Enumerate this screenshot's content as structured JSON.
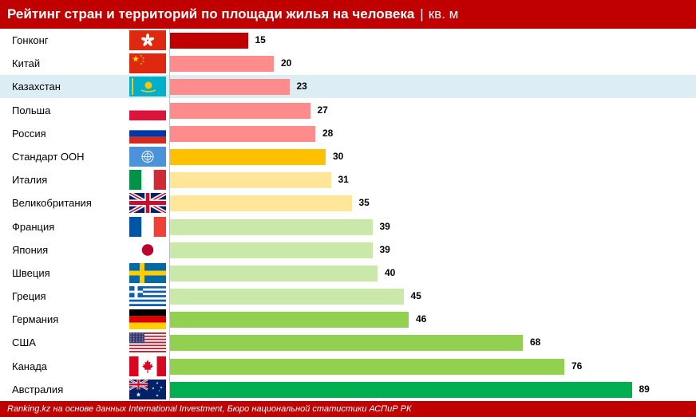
{
  "header": {
    "title": "Рейтинг стран и территорий по площади жилья на человека",
    "separator": "|",
    "unit": "кв. м"
  },
  "footer": {
    "source": "Ranking.kz на основе данных International Investment, Бюро национальной статистики АСПиР РК"
  },
  "colors": {
    "header_bg": "#c00000",
    "highlight_row": "#dcedf3",
    "tier_dark_red": "#c00000",
    "tier_pink": "#ff8c8c",
    "tier_amber": "#ffc000",
    "tier_light_yellow": "#ffe699",
    "tier_light_green": "#c9e8a9",
    "tier_green": "#92d050",
    "tier_dark_green": "#00b050"
  },
  "chart_data": {
    "type": "bar",
    "orientation": "horizontal",
    "title": "Рейтинг стран и территорий по площади жилья на человека",
    "unit": "кв. м",
    "xlabel": "",
    "ylabel": "",
    "xlim": [
      0,
      100
    ],
    "grid": false,
    "legend": "none",
    "highlighted_category": "Казахстан",
    "categories": [
      "Гонконг",
      "Китай",
      "Казахстан",
      "Польша",
      "Россия",
      "Стандарт ООН",
      "Италия",
      "Великобритания",
      "Франция",
      "Япония",
      "Швеция",
      "Греция",
      "Германия",
      "США",
      "Канада",
      "Австралия"
    ],
    "values": [
      15,
      20,
      23,
      27,
      28,
      30,
      31,
      35,
      39,
      39,
      40,
      45,
      46,
      68,
      76,
      89
    ],
    "bar_colors": [
      "#c00000",
      "#ff8c8c",
      "#ff8c8c",
      "#ff8c8c",
      "#ff8c8c",
      "#ffc000",
      "#ffe699",
      "#ffe699",
      "#c9e8a9",
      "#c9e8a9",
      "#c9e8a9",
      "#c9e8a9",
      "#92d050",
      "#92d050",
      "#92d050",
      "#00b050"
    ],
    "flag_icons": [
      "hong-kong-flag-icon",
      "china-flag-icon",
      "kazakhstan-flag-icon",
      "poland-flag-icon",
      "russia-flag-icon",
      "un-flag-icon",
      "italy-flag-icon",
      "uk-flag-icon",
      "france-flag-icon",
      "japan-flag-icon",
      "sweden-flag-icon",
      "greece-flag-icon",
      "germany-flag-icon",
      "usa-flag-icon",
      "canada-flag-icon",
      "australia-flag-icon"
    ]
  }
}
